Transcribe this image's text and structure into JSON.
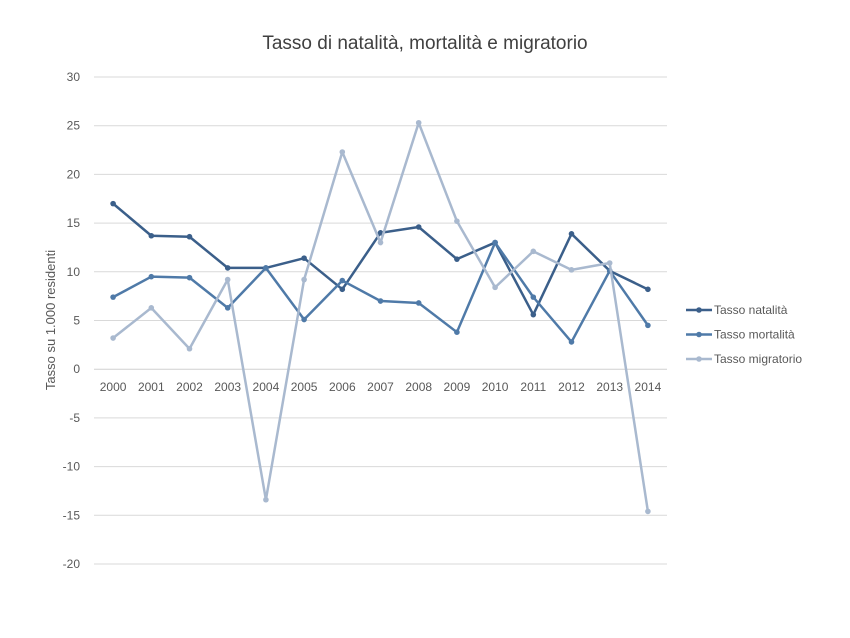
{
  "chart_data": {
    "type": "line",
    "title": "Tasso di natalità, mortalità e migratorio",
    "xlabel": "",
    "ylabel": "Tasso su 1.000 residenti",
    "ylim": [
      -20,
      30
    ],
    "yticks": [
      -20,
      -15,
      -10,
      -5,
      0,
      5,
      10,
      15,
      20,
      25,
      30
    ],
    "grid": true,
    "legend": "right",
    "categories": [
      "2000",
      "2001",
      "2002",
      "2003",
      "2004",
      "2005",
      "2006",
      "2007",
      "2008",
      "2009",
      "2010",
      "2011",
      "2012",
      "2013",
      "2014"
    ],
    "series": [
      {
        "name": "Tasso natalità",
        "color": "#3b5f8a",
        "values": [
          17.0,
          13.7,
          13.6,
          10.4,
          10.4,
          11.4,
          8.2,
          14.0,
          14.6,
          11.3,
          13.0,
          5.6,
          13.9,
          10.1,
          8.2
        ]
      },
      {
        "name": "Tasso mortalità",
        "color": "#4f7aa8",
        "values": [
          7.4,
          9.5,
          9.4,
          6.3,
          10.4,
          5.1,
          9.1,
          7.0,
          6.8,
          3.8,
          13.0,
          7.4,
          2.8,
          10.1,
          4.5
        ]
      },
      {
        "name": "Tasso migratorio",
        "color": "#a9b9cf",
        "values": [
          3.2,
          6.3,
          2.1,
          9.2,
          -13.4,
          9.2,
          22.3,
          13.0,
          25.3,
          15.2,
          8.4,
          12.1,
          10.2,
          10.9,
          -14.6
        ]
      }
    ]
  }
}
